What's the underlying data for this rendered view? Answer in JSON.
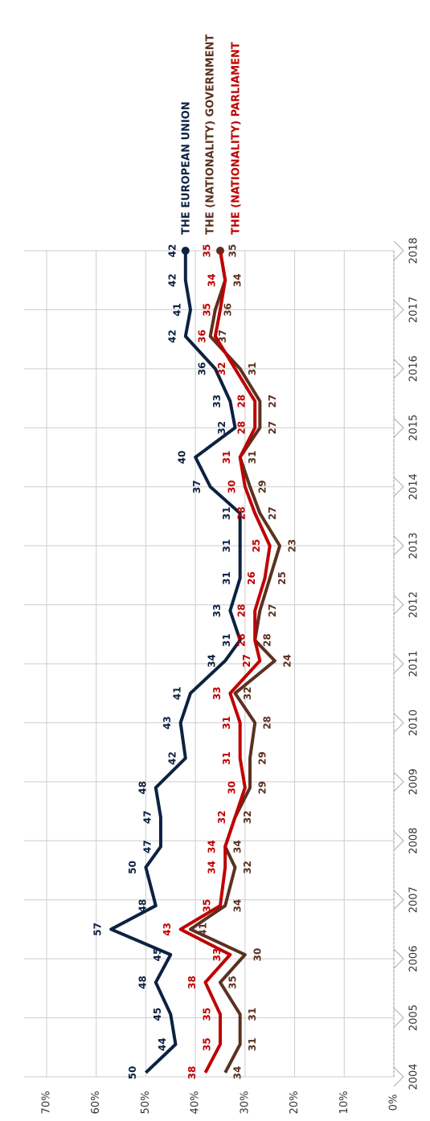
{
  "chart_data": {
    "type": "line",
    "x": [
      2004.07,
      2004.55,
      2005.06,
      2005.6,
      2006.07,
      2006.5,
      2006.9,
      2007.55,
      2007.9,
      2008.4,
      2008.9,
      2009.4,
      2010.0,
      2010.5,
      2011.05,
      2011.4,
      2011.9,
      2012.45,
      2013.0,
      2013.55,
      2014.0,
      2014.5,
      2015.0,
      2015.45,
      2016.0,
      2016.55,
      2017.0,
      2017.5,
      2018.0
    ],
    "series": [
      {
        "name": "THE EUROPEAN UNION",
        "color": "#0d2142",
        "values": [
          50,
          44,
          45,
          48,
          45,
          57,
          48,
          50,
          47,
          47,
          48,
          42,
          43,
          41,
          34,
          31,
          33,
          31,
          31,
          31,
          37,
          40,
          32,
          33,
          36,
          42,
          41,
          42,
          42
        ]
      },
      {
        "name": "THE (NATIONALITY) GOVERNMENT",
        "color": "#5b3120",
        "values": [
          34,
          31,
          31,
          35,
          30,
          41,
          34,
          32,
          34,
          32,
          29,
          29,
          28,
          32,
          24,
          28,
          27,
          25,
          23,
          27,
          29,
          31,
          27,
          27,
          31,
          37,
          36,
          34,
          35
        ]
      },
      {
        "name": "THE (NATIONALITY) PARLIAMENT",
        "color": "#c00000",
        "values": [
          38,
          35,
          35,
          38,
          33,
          43,
          35,
          34,
          34,
          32,
          30,
          31,
          31,
          33,
          27,
          28,
          28,
          26,
          25,
          28,
          30,
          31,
          28,
          28,
          32,
          36,
          35,
          34,
          35
        ]
      }
    ],
    "xlim": [
      2004,
      2018
    ],
    "xticks": [
      2004,
      2005,
      2006,
      2007,
      2008,
      2009,
      2010,
      2011,
      2012,
      2013,
      2014,
      2015,
      2016,
      2017,
      2018
    ],
    "ylim": [
      0,
      70
    ],
    "yticks": [
      {
        "value": 0,
        "label": "0%"
      },
      {
        "value": 10,
        "label": "10%"
      },
      {
        "value": 20,
        "label": "20%"
      },
      {
        "value": 30,
        "label": "30%"
      },
      {
        "value": 40,
        "label": "40%"
      },
      {
        "value": 50,
        "label": "50%"
      },
      {
        "value": 60,
        "label": "60%"
      },
      {
        "value": 70,
        "label": "70%"
      }
    ],
    "grid": true
  }
}
